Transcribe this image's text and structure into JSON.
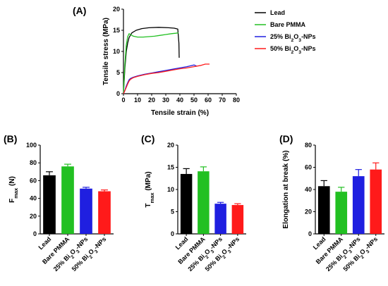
{
  "chart_data": [
    {
      "panel": "(A)",
      "type": "line",
      "xlabel": "Tensile strain (%)",
      "ylabel": "Tensile stress (MPa)",
      "xlim": [
        0,
        80
      ],
      "ylim": [
        0,
        20
      ],
      "xticks": [
        0,
        10,
        20,
        30,
        40,
        50,
        60,
        70,
        80
      ],
      "yticks": [
        0,
        5,
        10,
        15,
        20
      ],
      "legend_position": "right",
      "series": [
        {
          "name": "Lead",
          "color": "#000000",
          "x": [
            0,
            1,
            2,
            3,
            4,
            6,
            9,
            13,
            18,
            25,
            32,
            36,
            38.5,
            39.3,
            39.5
          ],
          "y": [
            0,
            6,
            10,
            12,
            13.3,
            14.4,
            15.0,
            15.4,
            15.6,
            15.7,
            15.6,
            15.5,
            15.3,
            12,
            8.5
          ]
        },
        {
          "name": "Bare PMMA",
          "color": "#22c022",
          "x": [
            0,
            1,
            2,
            3,
            4,
            5,
            7,
            10,
            14,
            18,
            22,
            26,
            30,
            34,
            37,
            39
          ],
          "y": [
            0,
            7,
            11.5,
            13.5,
            14.2,
            14.0,
            13.6,
            13.4,
            13.4,
            13.5,
            13.6,
            13.8,
            14.0,
            14.2,
            14.3,
            14.4
          ]
        },
        {
          "name": "25% Bi₂O₃-NPs",
          "color": "#1f1fe0",
          "x": [
            0,
            1,
            2,
            3,
            4,
            5,
            7,
            10,
            15,
            20,
            25,
            30,
            35,
            40,
            45,
            50,
            52
          ],
          "y": [
            0,
            0.8,
            1.8,
            2.6,
            3.3,
            3.6,
            3.9,
            4.2,
            4.6,
            4.9,
            5.2,
            5.5,
            5.8,
            6.1,
            6.4,
            6.8,
            6.5
          ]
        },
        {
          "name": "50% Bi₂O₃-NPs",
          "color": "#ff1a1a",
          "x": [
            0,
            1,
            2,
            3,
            4,
            5,
            7,
            10,
            15,
            20,
            25,
            30,
            35,
            40,
            45,
            50,
            55,
            58,
            61
          ],
          "y": [
            0,
            0.7,
            1.5,
            2.3,
            3.0,
            3.4,
            3.8,
            4.1,
            4.5,
            4.8,
            5.0,
            5.3,
            5.6,
            5.9,
            6.1,
            6.4,
            6.7,
            7.0,
            7.0
          ]
        }
      ]
    },
    {
      "panel": "(B)",
      "type": "bar",
      "ylabel": "F",
      "ylabel_sub": "max",
      "ylabel_unit": " (N)",
      "ylim": [
        0,
        100
      ],
      "yticks": [
        0,
        20,
        40,
        60,
        80,
        100
      ],
      "categories": [
        "Lead",
        "Bare PMMA",
        "25% Bi₂O₃-NPs",
        "50% Bi₂O₃-NPs"
      ],
      "colors": [
        "#000000",
        "#22c022",
        "#1f1fe0",
        "#ff1a1a"
      ],
      "values": [
        66,
        76,
        51,
        48
      ],
      "errors": [
        4,
        2.5,
        1.5,
        1.5
      ]
    },
    {
      "panel": "(C)",
      "type": "bar",
      "ylabel": "T",
      "ylabel_sub": "max",
      "ylabel_unit": " (MPa)",
      "ylim": [
        0,
        20
      ],
      "yticks": [
        0,
        5,
        10,
        15,
        20
      ],
      "categories": [
        "Lead",
        "Bare PMMA",
        "25% Bi₂O₃-NPs",
        "50% Bi₂O₃-NPs"
      ],
      "colors": [
        "#000000",
        "#22c022",
        "#1f1fe0",
        "#ff1a1a"
      ],
      "values": [
        13.5,
        14.1,
        6.8,
        6.5
      ],
      "errors": [
        1.2,
        1.0,
        0.3,
        0.3
      ]
    },
    {
      "panel": "(D)",
      "type": "bar",
      "ylabel": "Elongation at break (%)",
      "ylim": [
        0,
        80
      ],
      "yticks": [
        0,
        20,
        40,
        60,
        80
      ],
      "categories": [
        "Lead",
        "Bare PMMA",
        "25% Bi₂O₃-NPs",
        "50% Bi₂O₃-NPs"
      ],
      "colors": [
        "#000000",
        "#22c022",
        "#1f1fe0",
        "#ff1a1a"
      ],
      "values": [
        43,
        38,
        52,
        58
      ],
      "errors": [
        5,
        4,
        6,
        6
      ]
    }
  ]
}
